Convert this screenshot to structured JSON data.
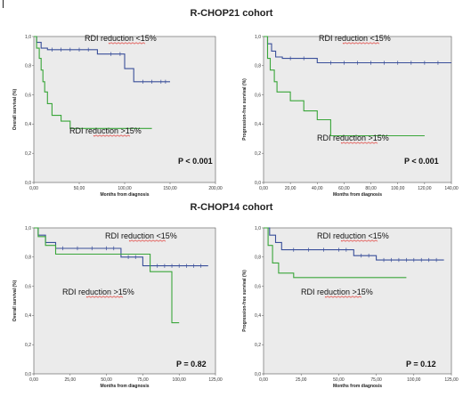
{
  "figure": {
    "titles": [
      "R-CHOP21 cohort",
      "R-CHOP14 cohort"
    ]
  },
  "colors": {
    "blue": "#3a4f9a",
    "green": "#3aa63a",
    "panel_bg": "#ebebeb",
    "axis": "#555555"
  },
  "chart_data": [
    {
      "type": "line",
      "title": "",
      "xlabel": "Months from diagnosis",
      "ylabel": "Overall survival (%)",
      "xlim": [
        0,
        200
      ],
      "ylim": [
        0,
        1.0
      ],
      "xticks": [
        "0,00",
        "50,00",
        "100,00",
        "150,00",
        "200,00"
      ],
      "yticks": [
        "0,0",
        "0,2",
        "0,4",
        "0,6",
        "0,8",
        "1,0"
      ],
      "annotations": [
        "RDI reduction <15%",
        "RDI reduction >15%"
      ],
      "pvalue": "P < 0.001",
      "series": [
        {
          "color": "#3a4f9a",
          "x": [
            0,
            3,
            3,
            8,
            8,
            15,
            15,
            70,
            70,
            100,
            100,
            110,
            110,
            150
          ],
          "y": [
            1.0,
            1.0,
            0.96,
            0.96,
            0.92,
            0.92,
            0.91,
            0.91,
            0.88,
            0.88,
            0.78,
            0.78,
            0.69,
            0.69
          ],
          "censor_x": [
            20,
            30,
            40,
            50,
            60,
            85,
            95,
            120,
            130,
            140,
            145
          ]
        },
        {
          "color": "#3aa63a",
          "x": [
            0,
            3,
            3,
            6,
            6,
            8,
            8,
            10,
            10,
            12,
            12,
            15,
            15,
            20,
            20,
            30,
            30,
            40,
            40,
            130
          ],
          "y": [
            1.0,
            1.0,
            0.92,
            0.92,
            0.85,
            0.85,
            0.77,
            0.77,
            0.69,
            0.69,
            0.62,
            0.62,
            0.54,
            0.54,
            0.46,
            0.46,
            0.42,
            0.42,
            0.37,
            0.37
          ],
          "censor_x": []
        }
      ]
    },
    {
      "type": "line",
      "title": "",
      "xlabel": "Months from diagnosis",
      "ylabel": "Progression-free survival (%)",
      "xlim": [
        0,
        140
      ],
      "ylim": [
        0,
        1.0
      ],
      "xticks": [
        "0,00",
        "20,00",
        "40,00",
        "60,00",
        "80,00",
        "100,00",
        "120,00",
        "140,00"
      ],
      "yticks": [
        "0,0",
        "0,2",
        "0,4",
        "0,6",
        "0,8",
        "1,0"
      ],
      "annotations": [
        "RDI reduction <15%",
        "RDI reduction >15%"
      ],
      "pvalue": "P < 0.001",
      "series": [
        {
          "color": "#3a4f9a",
          "x": [
            0,
            3,
            3,
            6,
            6,
            9,
            9,
            14,
            14,
            40,
            40,
            140
          ],
          "y": [
            1.0,
            1.0,
            0.95,
            0.95,
            0.9,
            0.9,
            0.86,
            0.86,
            0.85,
            0.85,
            0.82,
            0.82
          ],
          "censor_x": [
            20,
            30,
            50,
            60,
            70,
            80,
            90,
            100,
            110,
            120,
            130
          ]
        },
        {
          "color": "#3aa63a",
          "x": [
            0,
            3,
            3,
            5,
            5,
            8,
            8,
            10,
            10,
            20,
            20,
            30,
            30,
            40,
            40,
            50,
            50,
            65,
            65,
            120
          ],
          "y": [
            1.0,
            1.0,
            0.85,
            0.85,
            0.77,
            0.77,
            0.69,
            0.69,
            0.62,
            0.62,
            0.56,
            0.56,
            0.49,
            0.49,
            0.43,
            0.43,
            0.32,
            0.32,
            0.32,
            0.32
          ],
          "censor_x": []
        }
      ]
    },
    {
      "type": "line",
      "title": "",
      "xlabel": "Months from diagnosis",
      "ylabel": "Overall survival (%)",
      "xlim": [
        0,
        125
      ],
      "ylim": [
        0,
        1.0
      ],
      "xticks": [
        "0,00",
        "25,00",
        "50,00",
        "75,00",
        "100,00",
        "125,00"
      ],
      "yticks": [
        "0,0",
        "0,2",
        "0,4",
        "0,6",
        "0,8",
        "1,0"
      ],
      "annotations": [
        "RDI reduction <15%",
        "RDI reduction >15%"
      ],
      "pvalue": "P = 0.82",
      "series": [
        {
          "color": "#3a4f9a",
          "x": [
            0,
            3,
            3,
            8,
            8,
            15,
            15,
            60,
            60,
            75,
            75,
            120
          ],
          "y": [
            1.0,
            1.0,
            0.95,
            0.95,
            0.9,
            0.9,
            0.86,
            0.86,
            0.8,
            0.8,
            0.74,
            0.74
          ],
          "censor_x": [
            20,
            30,
            40,
            50,
            55,
            65,
            70,
            80,
            85,
            90,
            95,
            100,
            105,
            110,
            115
          ]
        },
        {
          "color": "#3aa63a",
          "x": [
            0,
            3,
            3,
            8,
            8,
            15,
            15,
            80,
            80,
            95,
            95,
            100
          ],
          "y": [
            1.0,
            1.0,
            0.94,
            0.94,
            0.88,
            0.88,
            0.82,
            0.82,
            0.7,
            0.7,
            0.35,
            0.35
          ],
          "censor_x": []
        }
      ]
    },
    {
      "type": "line",
      "title": "",
      "xlabel": "Months from diagnosis",
      "ylabel": "Progression-free survival (%)",
      "xlim": [
        0,
        125
      ],
      "ylim": [
        0,
        1.0
      ],
      "xticks": [
        "0,00",
        "25,00",
        "50,00",
        "75,00",
        "100,00",
        "125,00"
      ],
      "yticks": [
        "0,0",
        "0,2",
        "0,4",
        "0,6",
        "0,8",
        "1,0"
      ],
      "annotations": [
        "RDI reduction <15%",
        "RDI reduction >15%"
      ],
      "pvalue": "P = 0.12",
      "series": [
        {
          "color": "#3a4f9a",
          "x": [
            0,
            4,
            4,
            8,
            8,
            12,
            12,
            60,
            60,
            75,
            75,
            120
          ],
          "y": [
            1.0,
            1.0,
            0.95,
            0.95,
            0.9,
            0.9,
            0.85,
            0.85,
            0.81,
            0.81,
            0.78,
            0.78
          ],
          "censor_x": [
            20,
            30,
            40,
            50,
            55,
            65,
            70,
            80,
            85,
            90,
            95,
            100,
            105,
            110,
            115
          ]
        },
        {
          "color": "#3aa63a",
          "x": [
            0,
            3,
            3,
            6,
            6,
            10,
            10,
            20,
            20,
            95
          ],
          "y": [
            1.0,
            1.0,
            0.88,
            0.88,
            0.76,
            0.76,
            0.69,
            0.69,
            0.66,
            0.66
          ],
          "censor_x": []
        }
      ]
    }
  ]
}
